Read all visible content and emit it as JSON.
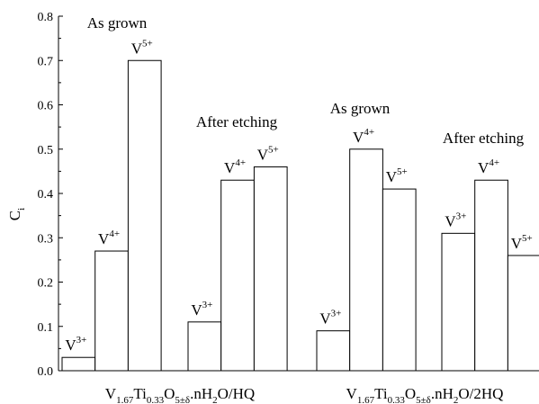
{
  "chart_data": {
    "type": "bar",
    "ylabel": "C",
    "ylabel_sub": "i",
    "ylim": [
      0,
      0.8
    ],
    "yticks": [
      "0.0",
      "0.1",
      "0.2",
      "0.3",
      "0.4",
      "0.5",
      "0.6",
      "0.7",
      "0.8"
    ],
    "ytick_values": [
      0,
      0.1,
      0.2,
      0.3,
      0.4,
      0.5,
      0.6,
      0.7,
      0.8
    ],
    "grid": false,
    "samples": [
      {
        "label_parts": [
          {
            "t": "V",
            "s": "n"
          },
          {
            "t": "1.67",
            "s": "sub"
          },
          {
            "t": "Ti",
            "s": "n"
          },
          {
            "t": "0.33",
            "s": "sub"
          },
          {
            "t": "O",
            "s": "n"
          },
          {
            "t": "5±δ",
            "s": "sub"
          },
          {
            "t": ".nH",
            "s": "n"
          },
          {
            "t": "2",
            "s": "sub"
          },
          {
            "t": "O/HQ",
            "s": "n"
          }
        ]
      },
      {
        "label_parts": [
          {
            "t": "V",
            "s": "n"
          },
          {
            "t": "1.67",
            "s": "sub"
          },
          {
            "t": "Ti",
            "s": "n"
          },
          {
            "t": "0.33",
            "s": "sub"
          },
          {
            "t": "O",
            "s": "n"
          },
          {
            "t": "5±δ",
            "s": "sub"
          },
          {
            "t": ".nH",
            "s": "n"
          },
          {
            "t": "2",
            "s": "sub"
          },
          {
            "t": "O/2HQ",
            "s": "n"
          }
        ]
      }
    ],
    "groups": [
      {
        "name": "As grown",
        "sample": 0,
        "bars": [
          {
            "ion": "V",
            "charge": "3+",
            "value": 0.03
          },
          {
            "ion": "V",
            "charge": "4+",
            "value": 0.27
          },
          {
            "ion": "V",
            "charge": "5+",
            "value": 0.7
          }
        ]
      },
      {
        "name": "After etching",
        "sample": 0,
        "bars": [
          {
            "ion": "V",
            "charge": "3+",
            "value": 0.11
          },
          {
            "ion": "V",
            "charge": "4+",
            "value": 0.43
          },
          {
            "ion": "V",
            "charge": "5+",
            "value": 0.46
          }
        ]
      },
      {
        "name": "As grown",
        "sample": 1,
        "bars": [
          {
            "ion": "V",
            "charge": "3+",
            "value": 0.09
          },
          {
            "ion": "V",
            "charge": "4+",
            "value": 0.5
          },
          {
            "ion": "V",
            "charge": "5+",
            "value": 0.41
          }
        ]
      },
      {
        "name": "After etching",
        "sample": 1,
        "bars": [
          {
            "ion": "V",
            "charge": "3+",
            "value": 0.31
          },
          {
            "ion": "V",
            "charge": "4+",
            "value": 0.43
          },
          {
            "ion": "V",
            "charge": "5+",
            "value": 0.26
          }
        ]
      }
    ]
  }
}
